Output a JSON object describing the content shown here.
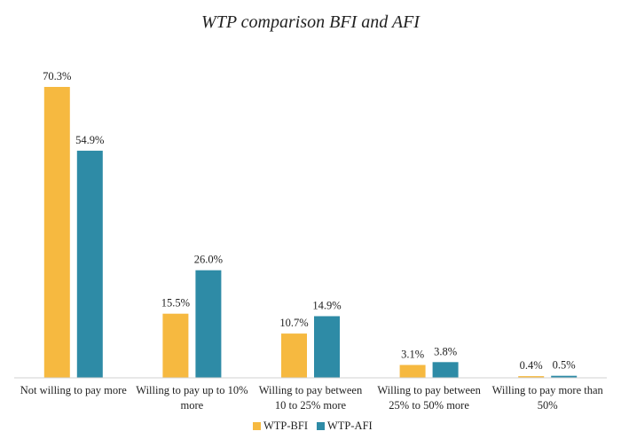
{
  "chart_data": {
    "type": "bar",
    "title": "WTP comparison BFI and AFI",
    "xlabel": "",
    "ylabel": "",
    "categories": [
      [
        "Not willing to pay more"
      ],
      [
        "Willing to pay up to 10%",
        "more"
      ],
      [
        "Willing to pay between",
        "10 to 25% more"
      ],
      [
        "Willing to pay between",
        "25% to 50% more"
      ],
      [
        "Willing to pay more than",
        "50%"
      ]
    ],
    "series": [
      {
        "name": "WTP-BFI",
        "color": "#F6B940",
        "values": [
          70.3,
          15.5,
          10.7,
          3.1,
          0.4
        ],
        "labels": [
          "70.3%",
          "15.5%",
          "10.7%",
          "3.1%",
          "0.4%"
        ]
      },
      {
        "name": "WTP-AFI",
        "color": "#2E8BA6",
        "values": [
          54.9,
          26.0,
          14.9,
          3.8,
          0.5
        ],
        "labels": [
          "54.9%",
          "26.0%",
          "14.9%",
          "3.8%",
          "0.5%"
        ]
      }
    ],
    "ylim": [
      0,
      70.3
    ],
    "grid": false,
    "legend": "bottom-center"
  }
}
